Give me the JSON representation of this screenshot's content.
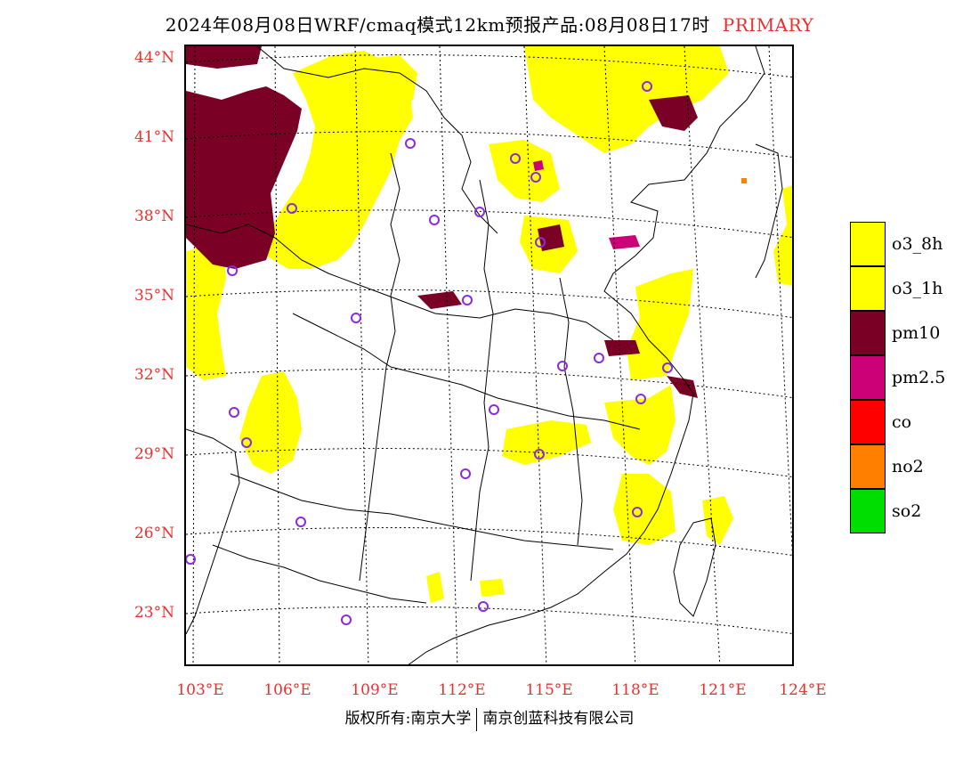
{
  "title": {
    "text": "2024年08月08日WRF/cmaq模式12km预报产品:08月08日17时",
    "tag": "PRIMARY"
  },
  "axes": {
    "lat_labels": [
      "44°N",
      "41°N",
      "38°N",
      "35°N",
      "32°N",
      "29°N",
      "26°N",
      "23°N"
    ],
    "lon_labels": [
      "103°E",
      "106°E",
      "109°E",
      "112°E",
      "115°E",
      "118°E",
      "121°E",
      "124°E"
    ]
  },
  "legend": [
    {
      "label": "o3_8h",
      "color": "#ffff00"
    },
    {
      "label": "o3_1h",
      "color": "#ffff00"
    },
    {
      "label": "pm10",
      "color": "#7a0026"
    },
    {
      "label": "pm2.5",
      "color": "#cc0077"
    },
    {
      "label": "co",
      "color": "#ff0000"
    },
    {
      "label": "no2",
      "color": "#ff8000"
    },
    {
      "label": "so2",
      "color": "#00dd00"
    }
  ],
  "footer": {
    "left": "版权所有:南京大学",
    "right": "南京创蓝科技有限公司"
  },
  "colors": {
    "label_red": "#e8312f",
    "station_circle": "#8a2be2"
  }
}
